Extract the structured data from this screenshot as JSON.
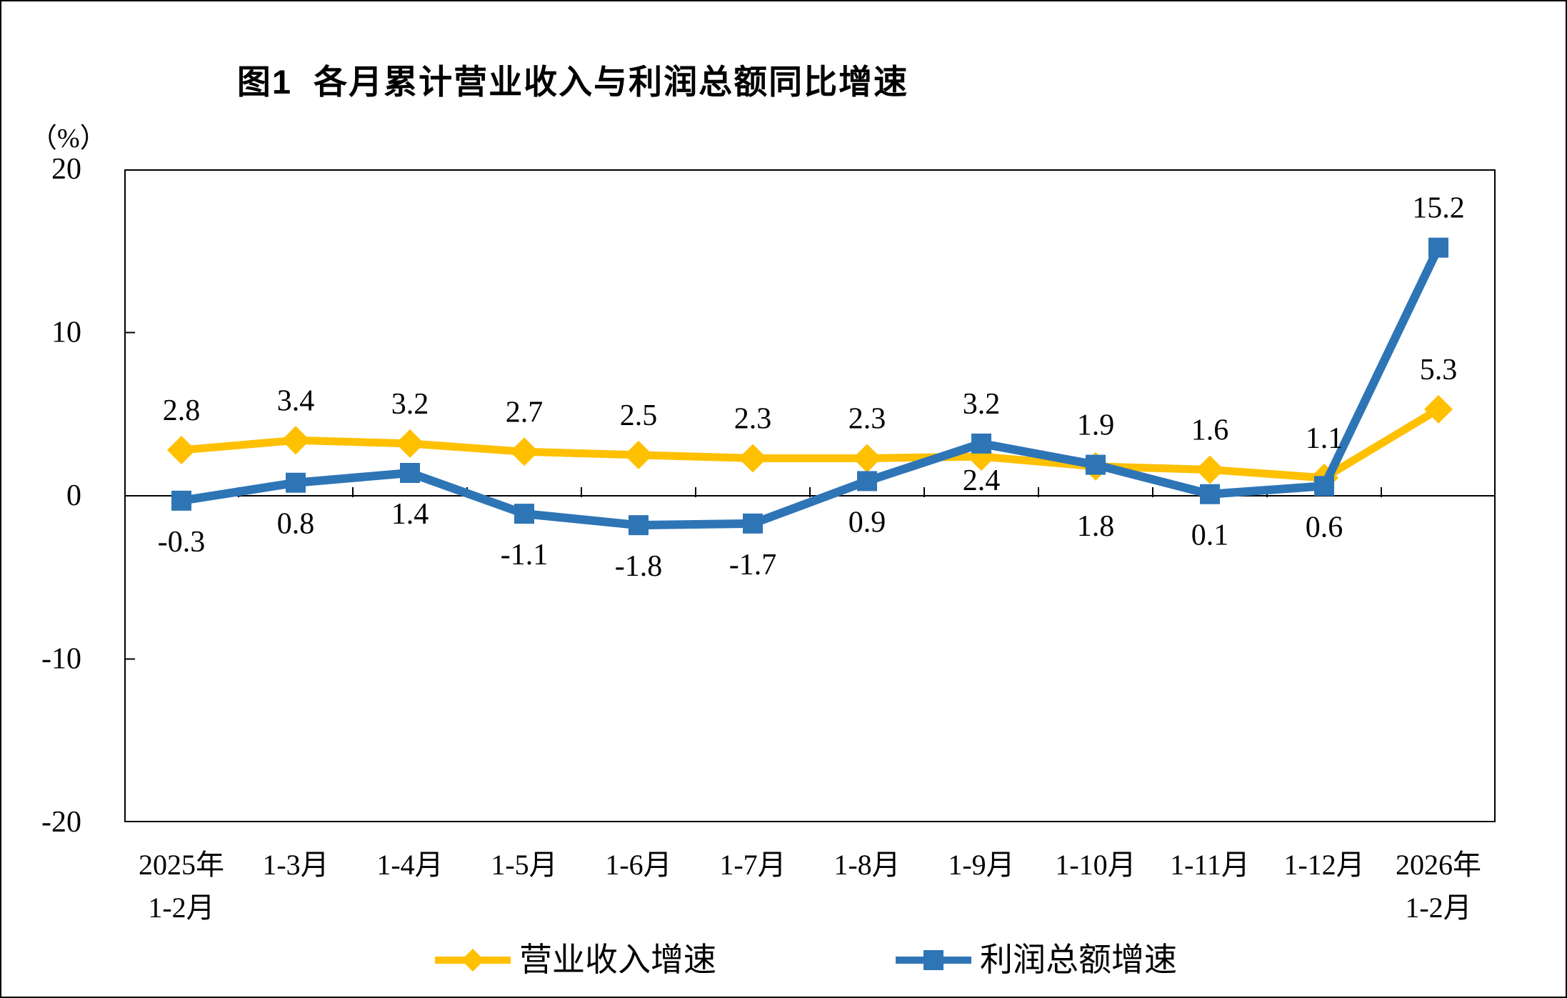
{
  "title": "图1  各月累计营业收入与利润总额同比增速",
  "y_axis_unit": "（%）",
  "chart_data": {
    "type": "line",
    "title": "图1 各月累计营业收入与利润总额同比增速",
    "xlabel": "",
    "ylabel": "（%）",
    "ylim": [
      -20,
      20
    ],
    "yticks": [
      20,
      10,
      0,
      -10,
      -20
    ],
    "grid": false,
    "legend_position": "bottom",
    "categories": [
      "2025年1-2月",
      "1-3月",
      "1-4月",
      "1-5月",
      "1-6月",
      "1-7月",
      "1-8月",
      "1-9月",
      "1-10月",
      "1-11月",
      "1-12月",
      "2026年1-2月"
    ],
    "category_tick_lines": [
      [
        "2025年",
        "1-2月"
      ],
      [
        "1-3月"
      ],
      [
        "1-4月"
      ],
      [
        "1-5月"
      ],
      [
        "1-6月"
      ],
      [
        "1-7月"
      ],
      [
        "1-8月"
      ],
      [
        "1-9月"
      ],
      [
        "1-10月"
      ],
      [
        "1-11月"
      ],
      [
        "1-12月"
      ],
      [
        "2026年",
        "1-2月"
      ]
    ],
    "series": [
      {
        "name": "营业收入增速",
        "color": "#FFC000",
        "marker": "diamond",
        "values": [
          2.8,
          3.4,
          3.2,
          2.7,
          2.5,
          2.3,
          2.3,
          2.4,
          1.8,
          1.6,
          1.1,
          5.3
        ],
        "label_pos": [
          "above",
          "above",
          "above",
          "above",
          "above",
          "above",
          "above",
          "below",
          "below",
          "above",
          "above",
          "above"
        ],
        "label_dy_override": {
          "7": 34,
          "8": 84
        }
      },
      {
        "name": "利润总额增速",
        "color": "#2E75B6",
        "marker": "square",
        "values": [
          -0.3,
          0.8,
          1.4,
          -1.1,
          -1.8,
          -1.7,
          0.9,
          3.2,
          1.9,
          0.1,
          0.6,
          15.2
        ],
        "label_pos": [
          "below",
          "below",
          "below",
          "below",
          "below",
          "below",
          "below",
          "above",
          "above",
          "below",
          "below",
          "above"
        ],
        "label_dy_override": {}
      }
    ]
  }
}
